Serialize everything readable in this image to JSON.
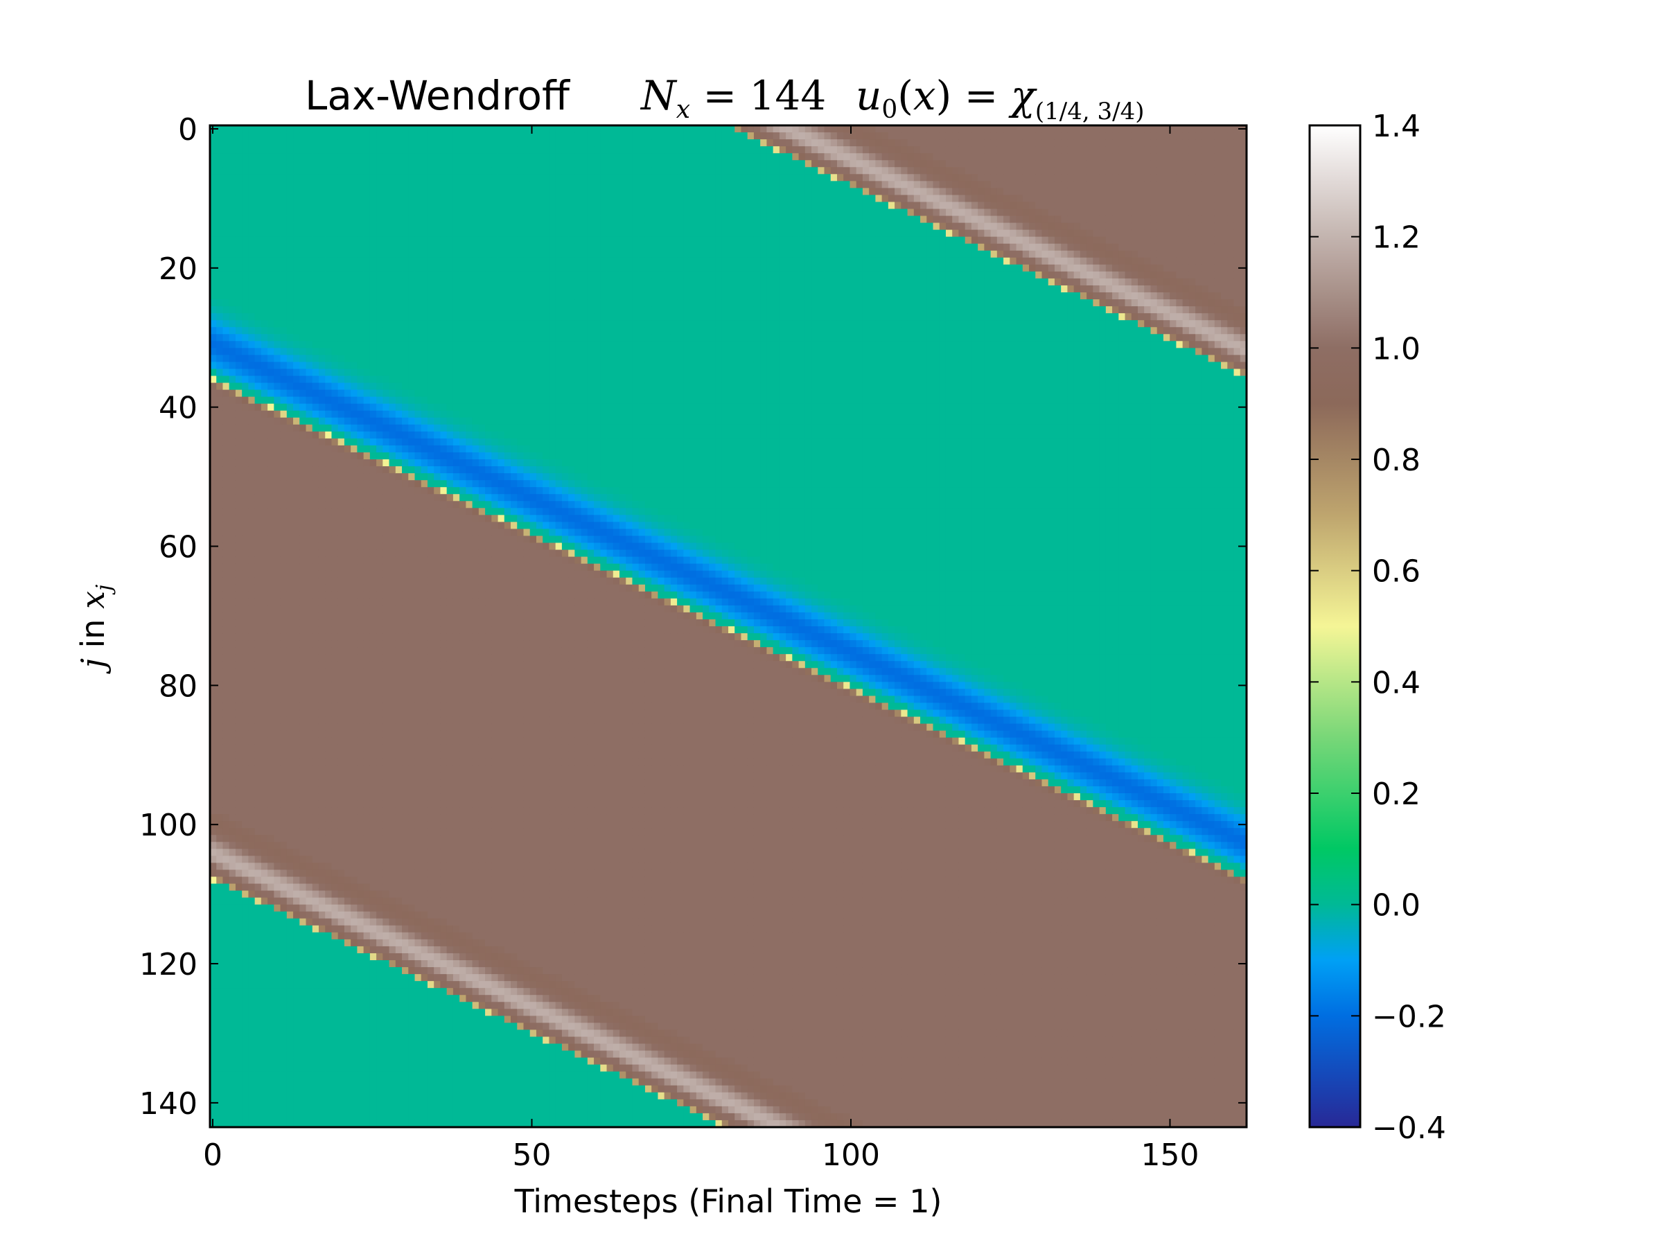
{
  "chart_data": {
    "type": "heatmap",
    "title": {
      "method": "Lax-Wendroff",
      "grid_label": "N_x = 144",
      "initial_condition": "u_0(x) = χ_(1/4, 3/4)"
    },
    "xlabel": "Timesteps (Final Time = 1)",
    "ylabel": "j in x_j",
    "xlim": [
      0,
      162
    ],
    "ylim": [
      143,
      0
    ],
    "x_ticks": [
      "0",
      "50",
      "100",
      "150"
    ],
    "y_ticks": [
      "0",
      "20",
      "40",
      "60",
      "80",
      "100",
      "120",
      "140"
    ],
    "colorbar": {
      "range": [
        -0.4,
        1.4
      ],
      "ticks": [
        "1.4",
        "1.2",
        "1.0",
        "0.8",
        "0.6",
        "0.4",
        "0.2",
        "0.0",
        "−0.2",
        "−0.4"
      ],
      "colormap": "terrain"
    },
    "grid": false,
    "field": {
      "description": "advected square pulse u0 = 1 on (1/4, 3/4), 0 elsewhere, periodic domain of 144 cells",
      "nx": 144,
      "nt": 162,
      "pulse_start_cell": 36,
      "pulse_end_cell": 108,
      "shift_cells_per_step": 0.444,
      "high_value": 1.0,
      "low_value": 0.0,
      "oscillation_overshoot": 1.3,
      "oscillation_undershoot": -0.2
    }
  }
}
